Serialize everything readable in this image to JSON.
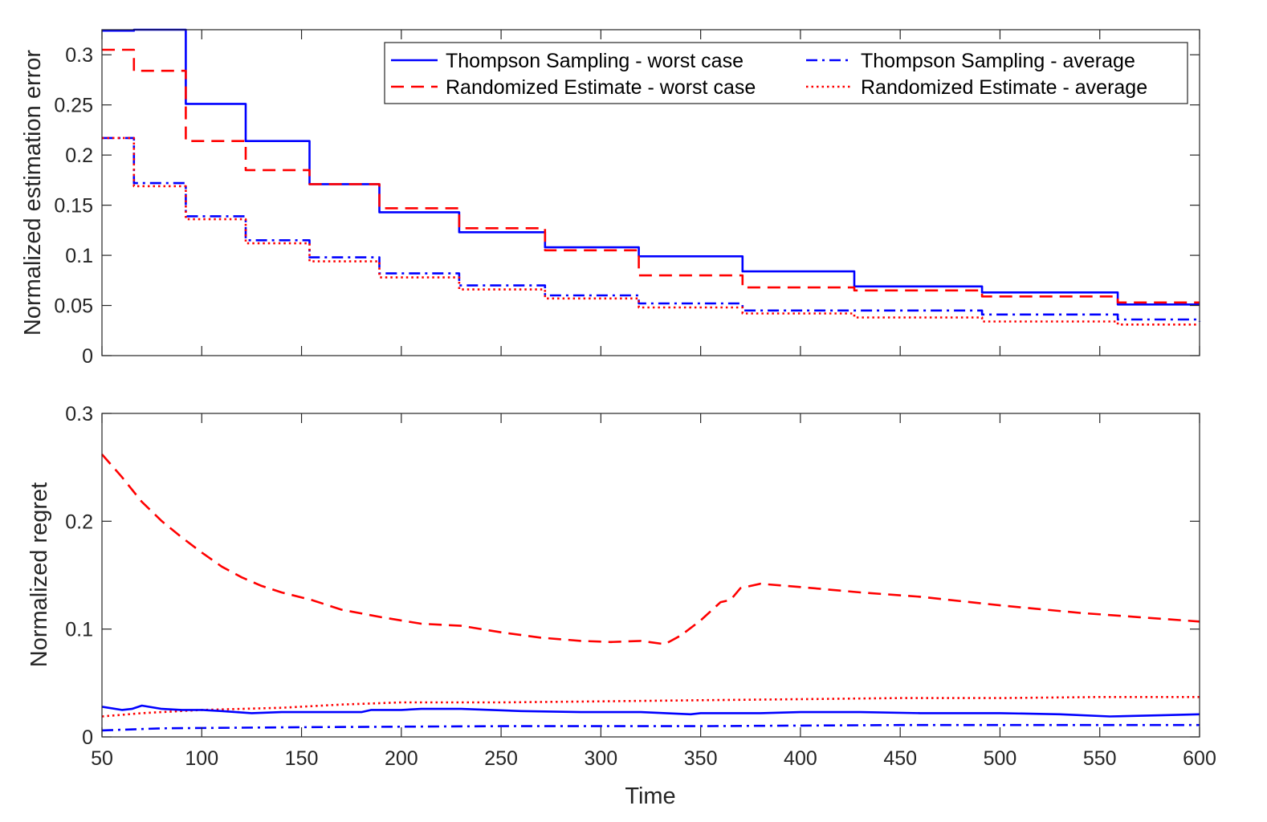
{
  "chart_data": [
    {
      "type": "line",
      "id": "top",
      "title": "",
      "xlabel": "",
      "ylabel": "Normalized estimation error",
      "xlim": [
        50,
        600
      ],
      "ylim": [
        0,
        0.325
      ],
      "xticks": [
        50,
        100,
        150,
        200,
        250,
        300,
        350,
        400,
        450,
        500,
        550,
        600
      ],
      "show_xtick_labels": false,
      "yticks": [
        0,
        0.05,
        0.1,
        0.15,
        0.2,
        0.25,
        0.3
      ],
      "ytick_labels": [
        "0",
        "0.05",
        "0.1",
        "0.15",
        "0.2",
        "0.25",
        "0.3"
      ],
      "grid": false,
      "legend": {
        "position": "top-right",
        "columns": 2,
        "entries": [
          {
            "label": "Thompson Sampling - worst case",
            "series": 0
          },
          {
            "label": "Thompson Sampling - average",
            "series": 1
          },
          {
            "label": "Randomized Estimate - worst case",
            "series": 2
          },
          {
            "label": "Randomized Estimate - average",
            "series": 3
          }
        ]
      },
      "series": [
        {
          "name": "Thompson Sampling - worst case",
          "color": "#0000ff",
          "dash": "solid",
          "step": true,
          "x": [
            50,
            66,
            92,
            122,
            154,
            189,
            229,
            272,
            319,
            371,
            427,
            491,
            559,
            600
          ],
          "y": [
            0.324,
            0.325,
            0.251,
            0.214,
            0.171,
            0.143,
            0.123,
            0.108,
            0.099,
            0.084,
            0.069,
            0.063,
            0.051,
            0.051
          ]
        },
        {
          "name": "Thompson Sampling - average",
          "color": "#0000ff",
          "dash": "dashdot",
          "step": true,
          "x": [
            50,
            66,
            92,
            122,
            154,
            189,
            229,
            272,
            319,
            371,
            427,
            491,
            559,
            600
          ],
          "y": [
            0.217,
            0.172,
            0.139,
            0.115,
            0.098,
            0.082,
            0.07,
            0.06,
            0.052,
            0.045,
            0.045,
            0.041,
            0.036,
            0.034
          ]
        },
        {
          "name": "Randomized Estimate - worst case",
          "color": "#ff0000",
          "dash": "dashed",
          "step": true,
          "x": [
            50,
            66,
            92,
            122,
            154,
            189,
            229,
            272,
            319,
            371,
            427,
            491,
            559,
            600
          ],
          "y": [
            0.305,
            0.284,
            0.214,
            0.185,
            0.171,
            0.147,
            0.127,
            0.105,
            0.08,
            0.068,
            0.065,
            0.059,
            0.053,
            0.053
          ]
        },
        {
          "name": "Randomized Estimate - average",
          "color": "#ff0000",
          "dash": "dotted",
          "step": true,
          "x": [
            50,
            66,
            92,
            122,
            154,
            189,
            229,
            272,
            319,
            371,
            427,
            491,
            559,
            600
          ],
          "y": [
            0.217,
            0.169,
            0.136,
            0.112,
            0.094,
            0.078,
            0.066,
            0.057,
            0.048,
            0.042,
            0.038,
            0.034,
            0.031,
            0.031
          ]
        }
      ]
    },
    {
      "type": "line",
      "id": "bottom",
      "title": "",
      "xlabel": "Time",
      "ylabel": "Normalized regret",
      "xlim": [
        50,
        600
      ],
      "ylim": [
        0,
        0.3
      ],
      "xticks": [
        50,
        100,
        150,
        200,
        250,
        300,
        350,
        400,
        450,
        500,
        550,
        600
      ],
      "xtick_labels": [
        "50",
        "100",
        "150",
        "200",
        "250",
        "300",
        "350",
        "400",
        "450",
        "500",
        "550",
        "600"
      ],
      "show_xtick_labels": true,
      "yticks": [
        0,
        0.1,
        0.2,
        0.3
      ],
      "ytick_labels": [
        "0",
        "0.1",
        "0.2",
        "0.3"
      ],
      "grid": false,
      "series": [
        {
          "name": "Randomized Estimate - worst case",
          "color": "#ff0000",
          "dash": "dashed",
          "step": false,
          "x": [
            50,
            60,
            70,
            80,
            90,
            100,
            110,
            120,
            130,
            140,
            155,
            170,
            190,
            210,
            230,
            250,
            270,
            290,
            305,
            320,
            332,
            340,
            350,
            360,
            365,
            370,
            380,
            400,
            430,
            460,
            500,
            540,
            570,
            600
          ],
          "y": [
            0.262,
            0.241,
            0.218,
            0.2,
            0.185,
            0.171,
            0.158,
            0.148,
            0.14,
            0.134,
            0.127,
            0.118,
            0.111,
            0.105,
            0.103,
            0.097,
            0.092,
            0.089,
            0.088,
            0.089,
            0.086,
            0.094,
            0.108,
            0.125,
            0.127,
            0.138,
            0.142,
            0.139,
            0.134,
            0.13,
            0.122,
            0.115,
            0.111,
            0.107
          ]
        },
        {
          "name": "Randomized Estimate - average",
          "color": "#ff0000",
          "dash": "dotted",
          "step": false,
          "x": [
            50,
            70,
            100,
            140,
            170,
            200,
            250,
            300,
            350,
            400,
            450,
            500,
            550,
            600
          ],
          "y": [
            0.019,
            0.022,
            0.025,
            0.027,
            0.03,
            0.032,
            0.032,
            0.033,
            0.034,
            0.035,
            0.036,
            0.036,
            0.037,
            0.037
          ]
        },
        {
          "name": "Thompson Sampling - worst case",
          "color": "#0000ff",
          "dash": "solid",
          "step": false,
          "x": [
            50,
            60,
            65,
            70,
            80,
            90,
            100,
            110,
            125,
            140,
            160,
            180,
            185,
            200,
            210,
            230,
            260,
            290,
            320,
            345,
            350,
            380,
            400,
            430,
            460,
            500,
            530,
            555,
            580,
            600
          ],
          "y": [
            0.028,
            0.025,
            0.026,
            0.029,
            0.026,
            0.025,
            0.025,
            0.024,
            0.022,
            0.023,
            0.023,
            0.023,
            0.025,
            0.025,
            0.026,
            0.026,
            0.024,
            0.023,
            0.023,
            0.021,
            0.022,
            0.022,
            0.023,
            0.023,
            0.022,
            0.022,
            0.021,
            0.019,
            0.02,
            0.021
          ]
        },
        {
          "name": "Thompson Sampling - average",
          "color": "#0000ff",
          "dash": "dashdot",
          "step": false,
          "x": [
            50,
            80,
            150,
            250,
            350,
            450,
            600
          ],
          "y": [
            0.006,
            0.008,
            0.009,
            0.01,
            0.01,
            0.011,
            0.011
          ]
        }
      ]
    }
  ]
}
